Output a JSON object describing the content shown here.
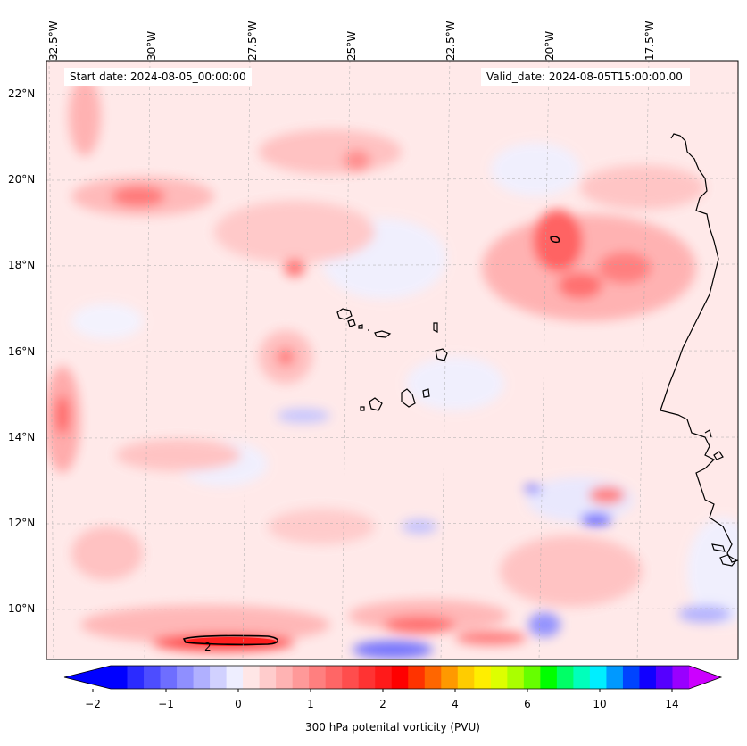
{
  "map": {
    "title_left": "Start date: 2024-08-05_00:00:00",
    "title_right": "Valid_date: 2024-08-05T15:00:00.00",
    "lon_labels": [
      "32.5°W",
      "30°W",
      "27.5°W",
      "25°W",
      "22.5°W",
      "20°W",
      "17.5°W"
    ],
    "lat_labels": [
      "22°N",
      "20°N",
      "18°N",
      "16°N",
      "14°N",
      "12°N",
      "10°N"
    ],
    "contour_label": "2",
    "field": "300 hPa potenital vorticity (PVU)"
  },
  "colorbar": {
    "label": "300 hPa potenital vorticity (PVU)",
    "ticks": [
      "−2",
      "−1",
      "0",
      "1",
      "2",
      "4",
      "6",
      "10",
      "14"
    ],
    "colors": [
      "#0000ff",
      "#2b2bff",
      "#4d4dff",
      "#6e6eff",
      "#8f8fff",
      "#b0b0ff",
      "#d1d1ff",
      "#eeeeff",
      "#ffe6e6",
      "#ffcccc",
      "#ffb3b3",
      "#ff9999",
      "#ff7f7f",
      "#ff6666",
      "#ff4d4d",
      "#ff3333",
      "#ff1a1a",
      "#ff0000",
      "#ff3300",
      "#ff6600",
      "#ff9900",
      "#ffcc00",
      "#ffee00",
      "#ddff00",
      "#aaff00",
      "#66ff00",
      "#00ff00",
      "#00ff66",
      "#00ffbb",
      "#00eeff",
      "#0099ff",
      "#0044ff",
      "#1100ff",
      "#5500ff",
      "#9900ff"
    ],
    "under_color": "#0000ff",
    "over_color": "#cc00ff"
  }
}
